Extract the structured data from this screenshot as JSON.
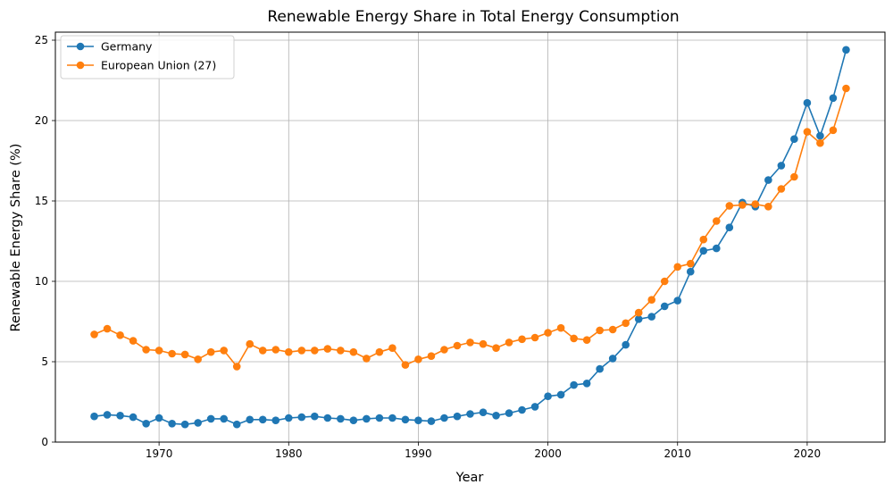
{
  "chart_data": {
    "type": "line",
    "title": "Renewable Energy Share in Total Energy Consumption",
    "xlabel": "Year",
    "ylabel": "Renewable Energy Share (%)",
    "xlim": [
      1962,
      2026
    ],
    "ylim": [
      0,
      25.5
    ],
    "xticks": [
      1970,
      1980,
      1990,
      2000,
      2010,
      2020
    ],
    "yticks": [
      0,
      5,
      10,
      15,
      20,
      25
    ],
    "grid": true,
    "legend_position": "upper-left",
    "x": [
      1965,
      1966,
      1967,
      1968,
      1969,
      1970,
      1971,
      1972,
      1973,
      1974,
      1975,
      1976,
      1977,
      1978,
      1979,
      1980,
      1981,
      1982,
      1983,
      1984,
      1985,
      1986,
      1987,
      1988,
      1989,
      1990,
      1991,
      1992,
      1993,
      1994,
      1995,
      1996,
      1997,
      1998,
      1999,
      2000,
      2001,
      2002,
      2003,
      2004,
      2005,
      2006,
      2007,
      2008,
      2009,
      2010,
      2011,
      2012,
      2013,
      2014,
      2015,
      2016,
      2017,
      2018,
      2019,
      2020,
      2021,
      2022,
      2023
    ],
    "series": [
      {
        "name": "Germany",
        "color": "#1f77b4",
        "values": [
          1.6,
          1.7,
          1.65,
          1.55,
          1.15,
          1.5,
          1.15,
          1.1,
          1.2,
          1.45,
          1.45,
          1.1,
          1.4,
          1.4,
          1.35,
          1.5,
          1.55,
          1.6,
          1.5,
          1.45,
          1.35,
          1.45,
          1.5,
          1.5,
          1.4,
          1.35,
          1.3,
          1.5,
          1.6,
          1.75,
          1.85,
          1.65,
          1.8,
          2.0,
          2.2,
          2.85,
          2.95,
          3.55,
          3.65,
          4.55,
          5.2,
          6.05,
          7.65,
          7.8,
          8.45,
          8.8,
          10.6,
          11.9,
          12.05,
          13.35,
          14.9,
          14.65,
          16.3,
          17.2,
          18.85,
          21.1,
          19.05,
          21.4,
          24.4
        ]
      },
      {
        "name": "European Union (27)",
        "color": "#ff7f0e",
        "values": [
          6.7,
          7.05,
          6.65,
          6.3,
          5.75,
          5.7,
          5.5,
          5.45,
          5.15,
          5.6,
          5.7,
          4.7,
          6.1,
          5.7,
          5.75,
          5.6,
          5.7,
          5.7,
          5.8,
          5.7,
          5.6,
          5.2,
          5.6,
          5.85,
          4.8,
          5.15,
          5.35,
          5.75,
          6.0,
          6.2,
          6.1,
          5.85,
          6.2,
          6.4,
          6.5,
          6.8,
          7.1,
          6.45,
          6.35,
          6.95,
          7.0,
          7.4,
          8.05,
          8.85,
          10.0,
          10.9,
          11.1,
          12.6,
          13.75,
          14.7,
          14.75,
          14.8,
          14.65,
          15.75,
          16.5,
          19.3,
          18.6,
          19.4,
          22.0
        ]
      }
    ]
  }
}
